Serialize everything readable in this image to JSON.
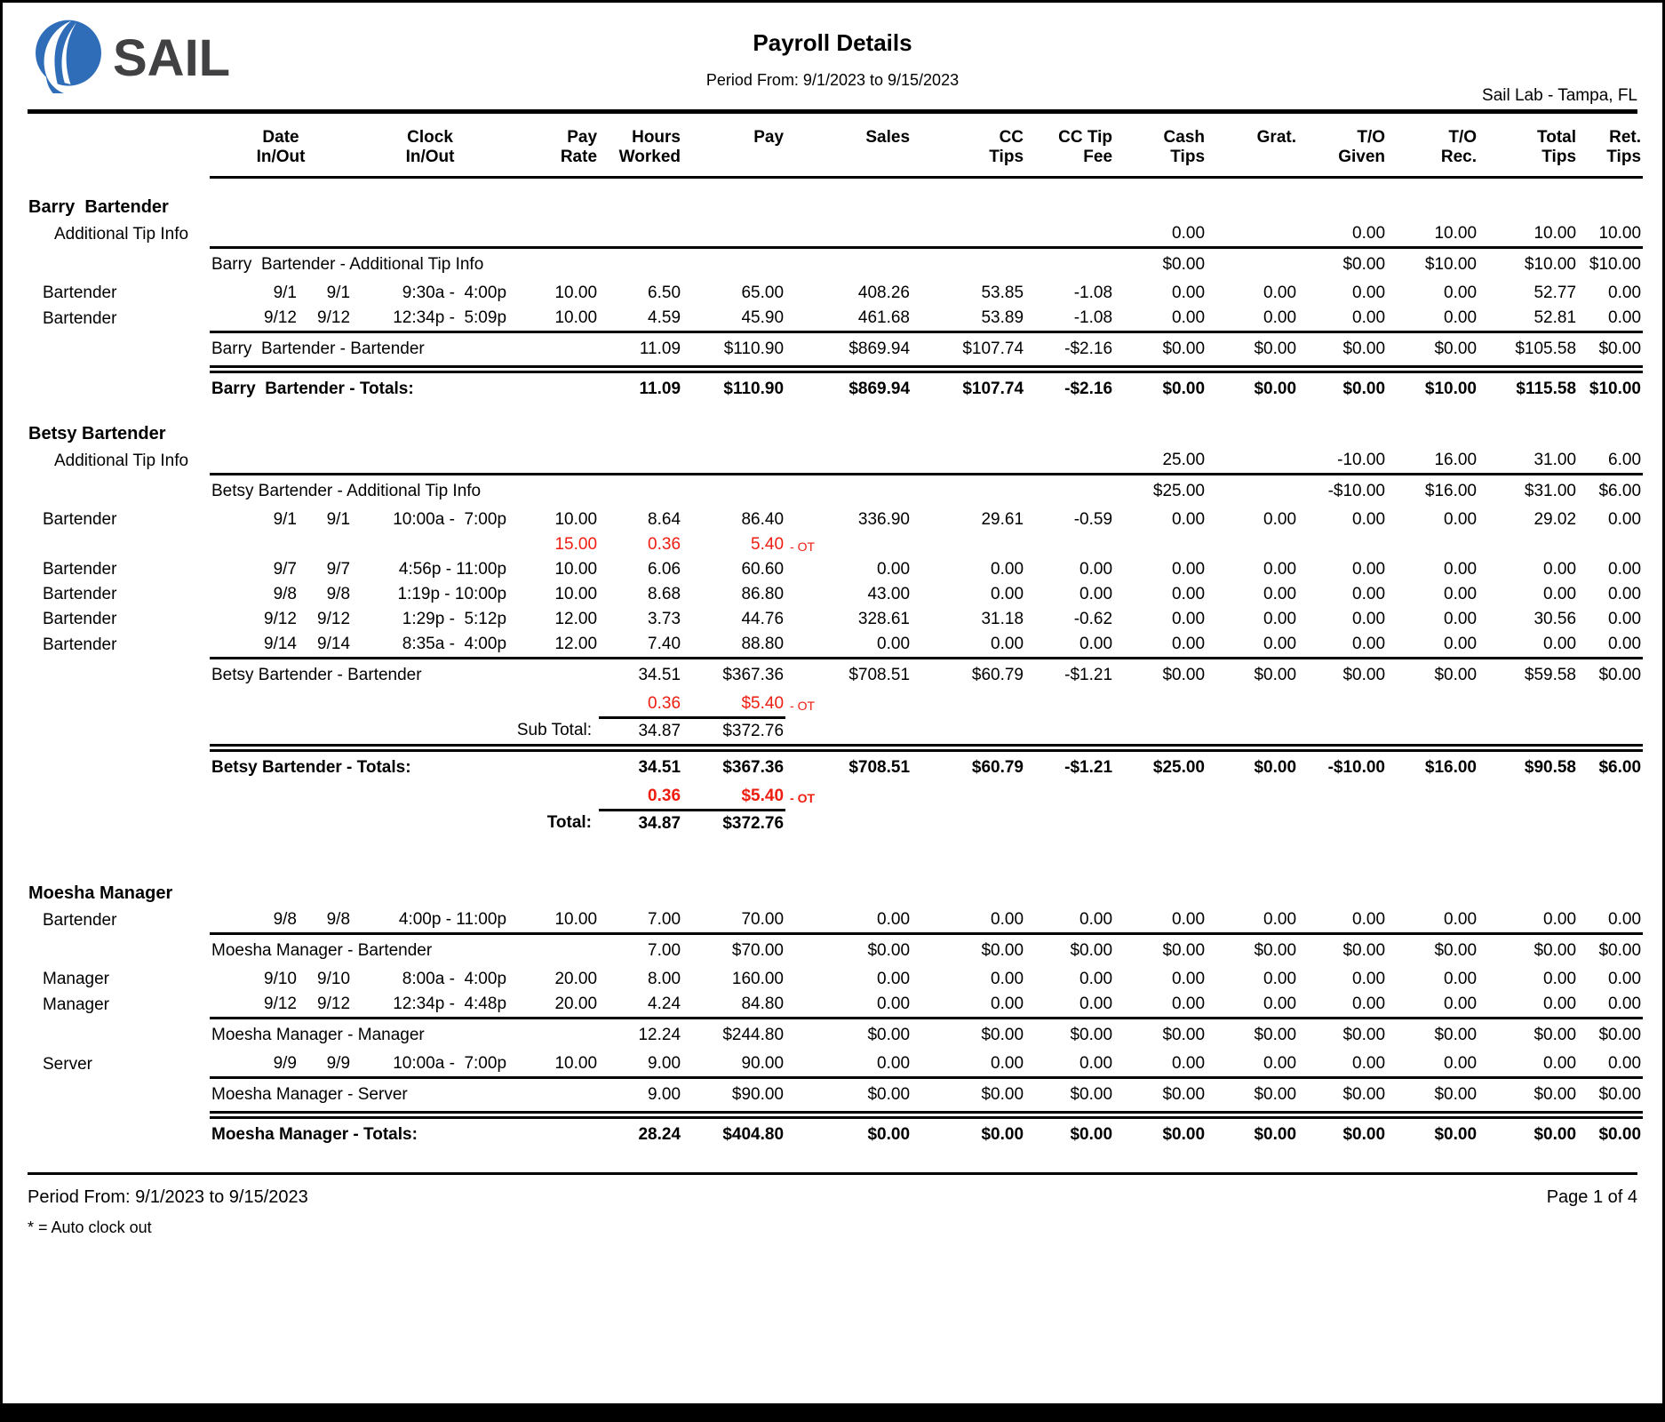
{
  "page": {
    "brand": "SAIL",
    "title": "Payroll Details",
    "subtitle": "Period From: 9/1/2023 to 9/15/2023",
    "location": "Sail Lab - Tampa, FL",
    "footer_period": "Period From: 9/1/2023 to 9/15/2023",
    "footer_page": "Page 1 of 4",
    "footer_note": "* = Auto clock out"
  },
  "colors": {
    "logo_blue": "#2f6db8",
    "logo_text": "#414042",
    "ot_red": "#ee1d10"
  },
  "table": {
    "ot_label": "- OT",
    "headers": {
      "job": [
        "",
        ""
      ],
      "date": [
        "Date",
        "In/Out"
      ],
      "clock": [
        "Clock",
        "In/Out"
      ],
      "rate": [
        "Pay",
        "Rate"
      ],
      "hours": [
        "Hours",
        "Worked"
      ],
      "pay": [
        "Pay",
        ""
      ],
      "sales": [
        "Sales",
        ""
      ],
      "cc": [
        "CC",
        "Tips"
      ],
      "fee": [
        "CC Tip",
        "Fee"
      ],
      "cash": [
        "Cash",
        "Tips"
      ],
      "grat": [
        "Grat.",
        ""
      ],
      "given": [
        "T/O",
        "Given"
      ],
      "rec": [
        "T/O",
        "Rec."
      ],
      "total": [
        "Total",
        "Tips"
      ],
      "ret": [
        "Ret.",
        "Tips"
      ]
    },
    "rows": [
      {
        "t": "emp",
        "label": "Barry  Bartender"
      },
      {
        "t": "row",
        "job": "Additional Tip Info",
        "indent": true,
        "cash": "0.00",
        "given": "0.00",
        "rec": "10.00",
        "total": "10.00",
        "ret": "10.00"
      },
      {
        "t": "sub",
        "label": "Barry  Bartender - Additional Tip Info",
        "cash": "$0.00",
        "given": "$0.00",
        "rec": "$10.00",
        "total": "$10.00",
        "ret": "$10.00"
      },
      {
        "t": "row",
        "job": "Bartender",
        "din": "9/1",
        "dout": "9/1",
        "clock": "9:30a -  4:00p",
        "rate": "10.00",
        "hours": "6.50",
        "pay": "65.00",
        "sales": "408.26",
        "cc": "53.85",
        "fee": "-1.08",
        "cash": "0.00",
        "grat": "0.00",
        "given": "0.00",
        "rec": "0.00",
        "total": "52.77",
        "ret": "0.00"
      },
      {
        "t": "row",
        "job": "Bartender",
        "din": "9/12",
        "dout": "9/12",
        "clock": "12:34p -  5:09p",
        "rate": "10.00",
        "hours": "4.59",
        "pay": "45.90",
        "sales": "461.68",
        "cc": "53.89",
        "fee": "-1.08",
        "cash": "0.00",
        "grat": "0.00",
        "given": "0.00",
        "rec": "0.00",
        "total": "52.81",
        "ret": "0.00"
      },
      {
        "t": "sub",
        "label": "Barry  Bartender - Bartender",
        "hours": "11.09",
        "pay": "$110.90",
        "sales": "$869.94",
        "cc": "$107.74",
        "fee": "-$2.16",
        "cash": "$0.00",
        "grat": "$0.00",
        "given": "$0.00",
        "rec": "$0.00",
        "total": "$105.58",
        "ret": "$0.00"
      },
      {
        "t": "tot",
        "label": "Barry  Bartender - Totals:",
        "hours": "11.09",
        "pay": "$110.90",
        "sales": "$869.94",
        "cc": "$107.74",
        "fee": "-$2.16",
        "cash": "$0.00",
        "grat": "$0.00",
        "given": "$0.00",
        "rec": "$10.00",
        "total": "$115.58",
        "ret": "$10.00"
      },
      {
        "t": "emp",
        "label": "Betsy Bartender"
      },
      {
        "t": "row",
        "job": "Additional Tip Info",
        "indent": true,
        "cash": "25.00",
        "given": "-10.00",
        "rec": "16.00",
        "total": "31.00",
        "ret": "6.00"
      },
      {
        "t": "sub",
        "label": "Betsy Bartender - Additional Tip Info",
        "cash": "$25.00",
        "given": "-$10.00",
        "rec": "$16.00",
        "total": "$31.00",
        "ret": "$6.00"
      },
      {
        "t": "row",
        "job": "Bartender",
        "din": "9/1",
        "dout": "9/1",
        "clock": "10:00a -  7:00p",
        "rate": "10.00",
        "hours": "8.64",
        "pay": "86.40",
        "sales": "336.90",
        "cc": "29.61",
        "fee": "-0.59",
        "cash": "0.00",
        "grat": "0.00",
        "given": "0.00",
        "rec": "0.00",
        "total": "29.02",
        "ret": "0.00"
      },
      {
        "t": "ot",
        "rate": "15.00",
        "hours": "0.36",
        "pay": "5.40"
      },
      {
        "t": "row",
        "job": "Bartender",
        "din": "9/7",
        "dout": "9/7",
        "clock": "4:56p - 11:00p",
        "rate": "10.00",
        "hours": "6.06",
        "pay": "60.60",
        "sales": "0.00",
        "cc": "0.00",
        "fee": "0.00",
        "cash": "0.00",
        "grat": "0.00",
        "given": "0.00",
        "rec": "0.00",
        "total": "0.00",
        "ret": "0.00"
      },
      {
        "t": "row",
        "job": "Bartender",
        "din": "9/8",
        "dout": "9/8",
        "clock": "1:19p - 10:00p",
        "rate": "10.00",
        "hours": "8.68",
        "pay": "86.80",
        "sales": "43.00",
        "cc": "0.00",
        "fee": "0.00",
        "cash": "0.00",
        "grat": "0.00",
        "given": "0.00",
        "rec": "0.00",
        "total": "0.00",
        "ret": "0.00"
      },
      {
        "t": "row",
        "job": "Bartender",
        "din": "9/12",
        "dout": "9/12",
        "clock": "1:29p -  5:12p",
        "rate": "12.00",
        "hours": "3.73",
        "pay": "44.76",
        "sales": "328.61",
        "cc": "31.18",
        "fee": "-0.62",
        "cash": "0.00",
        "grat": "0.00",
        "given": "0.00",
        "rec": "0.00",
        "total": "30.56",
        "ret": "0.00"
      },
      {
        "t": "row",
        "job": "Bartender",
        "din": "9/14",
        "dout": "9/14",
        "clock": "8:35a -  4:00p",
        "rate": "12.00",
        "hours": "7.40",
        "pay": "88.80",
        "sales": "0.00",
        "cc": "0.00",
        "fee": "0.00",
        "cash": "0.00",
        "grat": "0.00",
        "given": "0.00",
        "rec": "0.00",
        "total": "0.00",
        "ret": "0.00"
      },
      {
        "t": "sub",
        "label": "Betsy Bartender - Bartender",
        "hours": "34.51",
        "pay": "$367.36",
        "sales": "$708.51",
        "cc": "$60.79",
        "fee": "-$1.21",
        "cash": "$0.00",
        "grat": "$0.00",
        "given": "$0.00",
        "rec": "$0.00",
        "total": "$59.58",
        "ret": "$0.00"
      },
      {
        "t": "ot",
        "hours": "0.36",
        "pay": "$5.40",
        "underline": true
      },
      {
        "t": "subline",
        "label": "Sub Total:",
        "hours": "34.87",
        "pay": "$372.76"
      },
      {
        "t": "tot",
        "label": "Betsy Bartender - Totals:",
        "hours": "34.51",
        "pay": "$367.36",
        "sales": "$708.51",
        "cc": "$60.79",
        "fee": "-$1.21",
        "cash": "$25.00",
        "grat": "$0.00",
        "given": "-$10.00",
        "rec": "$16.00",
        "total": "$90.58",
        "ret": "$6.00"
      },
      {
        "t": "ot",
        "hours": "0.36",
        "pay": "$5.40",
        "underline": true,
        "bold": true
      },
      {
        "t": "subline",
        "label": "Total:",
        "hours": "34.87",
        "pay": "$372.76",
        "bold": true
      },
      {
        "t": "gap"
      },
      {
        "t": "emp",
        "label": "Moesha Manager"
      },
      {
        "t": "row",
        "job": "Bartender",
        "din": "9/8",
        "dout": "9/8",
        "clock": "4:00p - 11:00p",
        "rate": "10.00",
        "hours": "7.00",
        "pay": "70.00",
        "sales": "0.00",
        "cc": "0.00",
        "fee": "0.00",
        "cash": "0.00",
        "grat": "0.00",
        "given": "0.00",
        "rec": "0.00",
        "total": "0.00",
        "ret": "0.00"
      },
      {
        "t": "sub",
        "label": "Moesha Manager - Bartender",
        "hours": "7.00",
        "pay": "$70.00",
        "sales": "$0.00",
        "cc": "$0.00",
        "fee": "$0.00",
        "cash": "$0.00",
        "grat": "$0.00",
        "given": "$0.00",
        "rec": "$0.00",
        "total": "$0.00",
        "ret": "$0.00"
      },
      {
        "t": "row",
        "job": "Manager",
        "din": "9/10",
        "dout": "9/10",
        "clock": "8:00a -  4:00p",
        "rate": "20.00",
        "hours": "8.00",
        "pay": "160.00",
        "sales": "0.00",
        "cc": "0.00",
        "fee": "0.00",
        "cash": "0.00",
        "grat": "0.00",
        "given": "0.00",
        "rec": "0.00",
        "total": "0.00",
        "ret": "0.00"
      },
      {
        "t": "row",
        "job": "Manager",
        "din": "9/12",
        "dout": "9/12",
        "clock": "12:34p -  4:48p",
        "rate": "20.00",
        "hours": "4.24",
        "pay": "84.80",
        "sales": "0.00",
        "cc": "0.00",
        "fee": "0.00",
        "cash": "0.00",
        "grat": "0.00",
        "given": "0.00",
        "rec": "0.00",
        "total": "0.00",
        "ret": "0.00"
      },
      {
        "t": "sub",
        "label": "Moesha Manager - Manager",
        "hours": "12.24",
        "pay": "$244.80",
        "sales": "$0.00",
        "cc": "$0.00",
        "fee": "$0.00",
        "cash": "$0.00",
        "grat": "$0.00",
        "given": "$0.00",
        "rec": "$0.00",
        "total": "$0.00",
        "ret": "$0.00"
      },
      {
        "t": "row",
        "job": "Server",
        "din": "9/9",
        "dout": "9/9",
        "clock": "10:00a -  7:00p",
        "rate": "10.00",
        "hours": "9.00",
        "pay": "90.00",
        "sales": "0.00",
        "cc": "0.00",
        "fee": "0.00",
        "cash": "0.00",
        "grat": "0.00",
        "given": "0.00",
        "rec": "0.00",
        "total": "0.00",
        "ret": "0.00"
      },
      {
        "t": "sub",
        "label": "Moesha Manager - Server",
        "hours": "9.00",
        "pay": "$90.00",
        "sales": "$0.00",
        "cc": "$0.00",
        "fee": "$0.00",
        "cash": "$0.00",
        "grat": "$0.00",
        "given": "$0.00",
        "rec": "$0.00",
        "total": "$0.00",
        "ret": "$0.00"
      },
      {
        "t": "tot",
        "label": "Moesha Manager - Totals:",
        "hours": "28.24",
        "pay": "$404.80",
        "sales": "$0.00",
        "cc": "$0.00",
        "fee": "$0.00",
        "cash": "$0.00",
        "grat": "$0.00",
        "given": "$0.00",
        "rec": "$0.00",
        "total": "$0.00",
        "ret": "$0.00"
      }
    ]
  }
}
